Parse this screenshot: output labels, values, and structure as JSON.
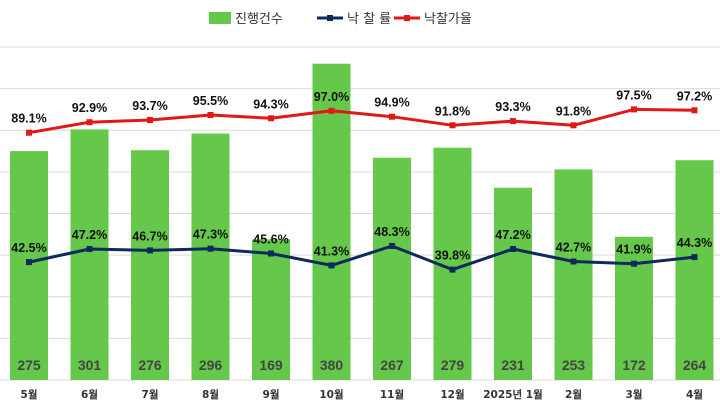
{
  "chart_data": {
    "type": "bar",
    "categories": [
      "5월",
      "6월",
      "7월",
      "8월",
      "9월",
      "10월",
      "11월",
      "12월",
      "2025년 1월",
      "2월",
      "3월",
      "4월"
    ],
    "series": [
      {
        "name": "진행건수",
        "type": "bar",
        "values": [
          275,
          301,
          276,
          296,
          169,
          380,
          267,
          279,
          231,
          253,
          172,
          264
        ],
        "labels": [
          "275",
          "301",
          "276",
          "296",
          "169",
          "380",
          "267",
          "279",
          "231",
          "253",
          "172",
          "264"
        ]
      },
      {
        "name": "낙 찰 률",
        "type": "line",
        "values": [
          42.5,
          47.2,
          46.7,
          47.3,
          45.6,
          41.3,
          48.3,
          39.8,
          47.2,
          42.7,
          41.9,
          44.3
        ],
        "labels": [
          "42.5%",
          "47.2%",
          "46.7%",
          "47.3%",
          "45.6%",
          "41.3%",
          "48.3%",
          "39.8%",
          "47.2%",
          "42.7%",
          "41.9%",
          "44.3%"
        ]
      },
      {
        "name": "낙찰가율",
        "type": "line",
        "values": [
          89.1,
          92.9,
          93.7,
          95.5,
          94.3,
          97.0,
          94.9,
          91.8,
          93.3,
          91.8,
          97.5,
          97.2
        ],
        "labels": [
          "89.1%",
          "92.9%",
          "93.7%",
          "95.5%",
          "94.3%",
          "97.0%",
          "94.9%",
          "91.8%",
          "93.3%",
          "91.8%",
          "97.5%",
          "97.2%"
        ]
      }
    ],
    "grid": true,
    "legend": "top",
    "colors": {
      "bar": "#66c84a",
      "rate_line": "#0d2a5c",
      "price_line": "#e01818",
      "grid": "#d9d9d9"
    }
  }
}
